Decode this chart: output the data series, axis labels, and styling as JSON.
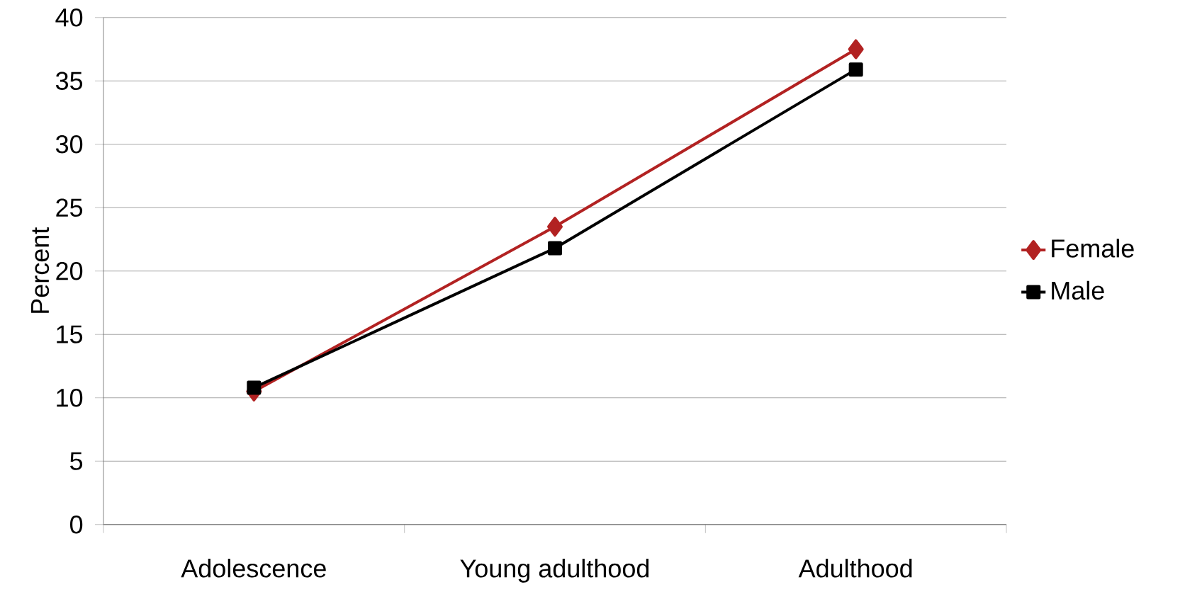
{
  "chart_data": {
    "type": "line",
    "ylabel": "Percent",
    "categories": [
      "Adolescence",
      "Young adulthood",
      "Adulthood"
    ],
    "series": [
      {
        "name": "Female",
        "color": "#b22222",
        "marker": "diamond",
        "values": [
          10.5,
          23.5,
          37.5
        ]
      },
      {
        "name": "Male",
        "color": "#000000",
        "marker": "square",
        "values": [
          10.8,
          21.8,
          35.9
        ]
      }
    ],
    "ylim": [
      0,
      40
    ],
    "yticks": [
      0,
      5,
      10,
      15,
      20,
      25,
      30,
      35,
      40
    ],
    "grid": "y",
    "legend": "right"
  }
}
